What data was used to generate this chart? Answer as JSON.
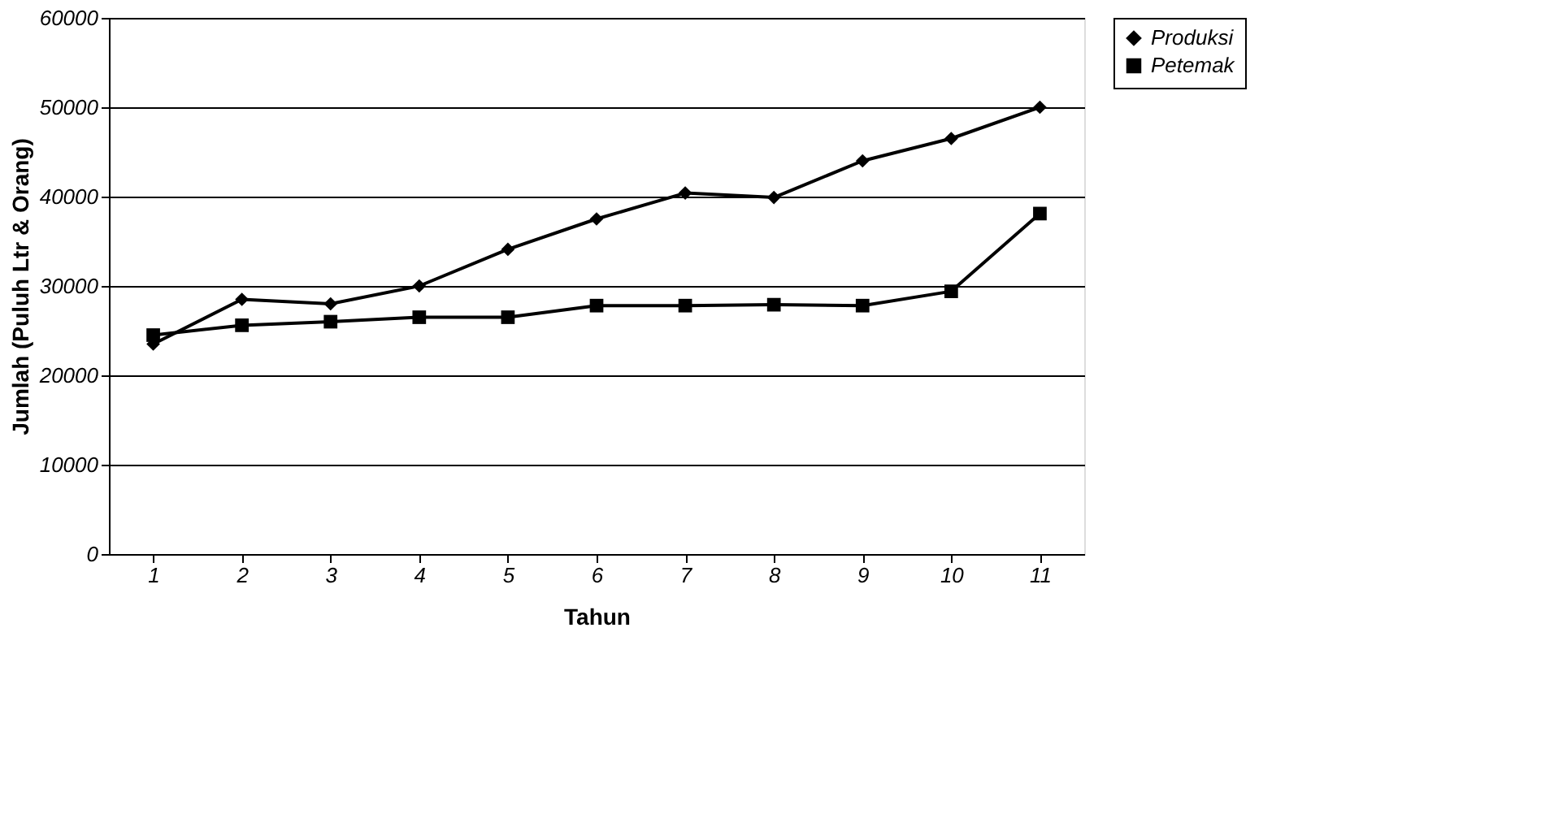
{
  "chart_data": {
    "type": "line",
    "xlabel": "Tahun",
    "ylabel": "Jumlah (Puluh Ltr & Orang)",
    "categories": [
      "1",
      "2",
      "3",
      "4",
      "5",
      "6",
      "7",
      "8",
      "9",
      "10",
      "11"
    ],
    "series": [
      {
        "name": "Produksi",
        "color": "#000000",
        "marker": "diamond",
        "values": [
          23500,
          28500,
          28000,
          30000,
          34100,
          37500,
          40400,
          39900,
          44000,
          46500,
          50000
        ]
      },
      {
        "name": "Petemak",
        "color": "#000000",
        "marker": "square",
        "values": [
          24500,
          25600,
          26000,
          26500,
          26500,
          27800,
          27800,
          27900,
          27800,
          29400,
          38100
        ]
      }
    ],
    "ylim": [
      0,
      60000
    ],
    "yticks": [
      0,
      10000,
      20000,
      30000,
      40000,
      50000,
      60000
    ],
    "grid": "y",
    "legend": "right",
    "line_style": "solid"
  }
}
